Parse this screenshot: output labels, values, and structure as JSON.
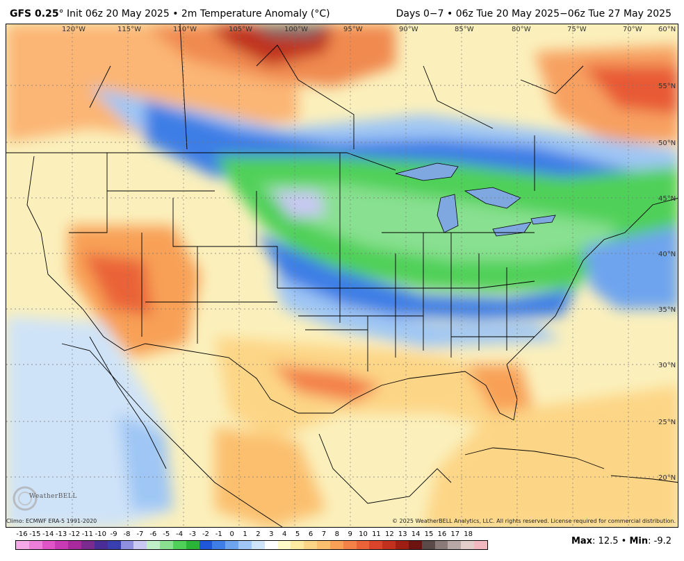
{
  "header": {
    "model": "GFS 0.25",
    "deg": "°",
    "title_rest": " Init 06z 20 May 2025 • 2m Temperature Anomaly (°C)",
    "date_range": "Days 0−7 • 06z Tue 20 May 2025−06z Tue 27 May 2025"
  },
  "map": {
    "lon_labels": [
      "120°W",
      "115°W",
      "110°W",
      "105°W",
      "100°W",
      "95°W",
      "90°W",
      "85°W",
      "80°W",
      "75°W",
      "70°W",
      "60°N"
    ],
    "lat_labels": [
      "55°N",
      "50°N",
      "45°N",
      "40°N",
      "35°N",
      "30°N",
      "25°N",
      "20°N"
    ]
  },
  "footer": {
    "climo": "Climo: ECMWF ERA-5 1991-2020",
    "copyright": "© 2025 WeatherBELL Analytics, LLC. All rights reserved. License required for commercial distribution.",
    "logo": "WeatherBELL",
    "max_label": "Max",
    "max_value": ": 12.5",
    "sep": " • ",
    "min_label": "Min",
    "min_value": ": -9.2"
  },
  "colorbar": {
    "labels": [
      "-16",
      "-15",
      "-14",
      "-13",
      "-12",
      "-11",
      "-10",
      "-9",
      "-8",
      "-7",
      "-6",
      "-5",
      "-4",
      "-3",
      "-2",
      "-1",
      "0",
      "1",
      "2",
      "3",
      "4",
      "5",
      "6",
      "7",
      "8",
      "9",
      "10",
      "11",
      "12",
      "13",
      "14",
      "15",
      "16",
      "17",
      "18"
    ],
    "colors": [
      "#f7a8e6",
      "#ee7fd8",
      "#e054c8",
      "#c93bb4",
      "#a82a9c",
      "#7b2a90",
      "#4b2d97",
      "#3a3fb0",
      "#8f8fe0",
      "#c8c8f2",
      "#c0f0c8",
      "#88e090",
      "#4fd058",
      "#2bb538",
      "#1f57d8",
      "#3e7ee6",
      "#6ea4ee",
      "#9fc6f4",
      "#cfe3f8",
      "#ffffff",
      "#fff8c8",
      "#feeaa0",
      "#fdd586",
      "#fbbf6e",
      "#f8a056",
      "#f38148",
      "#ea6338",
      "#d9442a",
      "#c2301e",
      "#9e1e14",
      "#6e1410",
      "#5a4a48",
      "#8a7a78",
      "#b8a8a6",
      "#e2cdcb",
      "#f2b8c0"
    ]
  }
}
